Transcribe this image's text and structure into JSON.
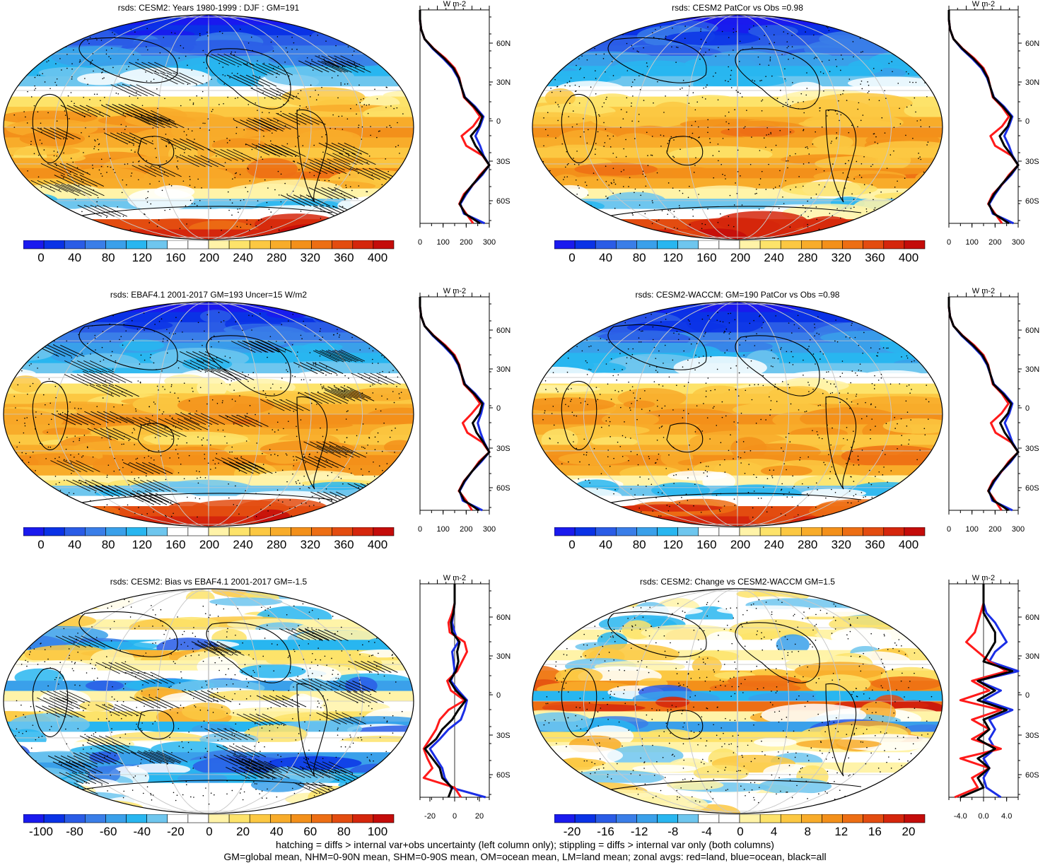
{
  "colors": {
    "full_scale": [
      "#1a1aee",
      "#0a32e6",
      "#2a5ce6",
      "#3a7ee8",
      "#3aa0ea",
      "#28b6f0",
      "#6ec6ee",
      "#ffffff",
      "#ffffff",
      "#fff3a8",
      "#fde36a",
      "#fcc842",
      "#f8ac2a",
      "#f3901a",
      "#ed6e14",
      "#e34c10",
      "#d5260c",
      "#c40c0a"
    ],
    "diff_scale": [
      "#1a1aee",
      "#0a32e6",
      "#2a5ce6",
      "#3a7ee8",
      "#3aa0ea",
      "#28b6f0",
      "#6ec6ee",
      "#ffffff",
      "#ffffff",
      "#fff3a8",
      "#fde36a",
      "#fcc842",
      "#f8ac2a",
      "#f3901a",
      "#ed6e14",
      "#e34c10",
      "#d5260c",
      "#c40c0a"
    ],
    "land_line": "#ff1a1a",
    "ocean_line": "#1a2ee6",
    "all_line": "#000000"
  },
  "panels": [
    {
      "id": "cesm2-climatology",
      "title": "rsds: CESM2: Years 1980-1999 : DJF : GM=191",
      "type": "full",
      "cbar_labels": [
        "0",
        "40",
        "80",
        "120",
        "160",
        "200",
        "240",
        "280",
        "320",
        "360",
        "400"
      ],
      "zonal_unit": "W m-2",
      "zonal_x_labels": [
        "0",
        "100",
        "200",
        "300"
      ],
      "zonal_x_range": [
        0,
        300
      ],
      "lat_labels": [
        "60N",
        "30N",
        "0",
        "30S",
        "60S"
      ],
      "zonal": {
        "land": [
          0,
          0,
          5,
          20,
          60,
          110,
          150,
          170,
          180,
          190,
          230,
          260,
          230,
          180,
          200,
          270,
          300,
          260,
          230,
          190,
          170,
          200,
          230
        ],
        "ocean": [
          0,
          0,
          5,
          20,
          55,
          100,
          140,
          165,
          180,
          195,
          240,
          275,
          260,
          240,
          260,
          275,
          300,
          270,
          230,
          200,
          175,
          190,
          280
        ],
        "all": [
          0,
          0,
          5,
          20,
          58,
          105,
          145,
          168,
          180,
          193,
          235,
          270,
          255,
          220,
          240,
          272,
          300,
          265,
          228,
          195,
          172,
          195,
          260
        ]
      }
    },
    {
      "id": "cesm2-patcor",
      "title": "rsds: CESM2 PatCor vs Obs =0.98",
      "type": "full",
      "cbar_labels": [
        "0",
        "40",
        "80",
        "120",
        "160",
        "200",
        "240",
        "280",
        "320",
        "360",
        "400"
      ],
      "zonal_unit": "W m-2",
      "zonal_x_labels": [
        "0",
        "100",
        "200",
        "300"
      ],
      "zonal_x_range": [
        0,
        300
      ],
      "lat_labels": [
        "60N",
        "30N",
        "0",
        "30S",
        "60S"
      ],
      "zonal": {
        "land": [
          0,
          0,
          5,
          20,
          60,
          110,
          150,
          170,
          180,
          190,
          230,
          260,
          230,
          180,
          200,
          270,
          300,
          260,
          230,
          190,
          170,
          200,
          230
        ],
        "ocean": [
          0,
          0,
          5,
          20,
          55,
          100,
          140,
          165,
          180,
          195,
          240,
          275,
          260,
          240,
          260,
          275,
          300,
          270,
          230,
          200,
          175,
          190,
          280
        ],
        "all": [
          0,
          0,
          5,
          20,
          58,
          105,
          145,
          168,
          180,
          193,
          235,
          270,
          255,
          220,
          240,
          272,
          300,
          265,
          228,
          195,
          172,
          195,
          260
        ]
      }
    },
    {
      "id": "ebaf-observations",
      "title": "rsds: EBAF4.1 2001-2017 GM=193 Uncer=15 W/m2",
      "type": "full",
      "cbar_labels": [
        "0",
        "40",
        "80",
        "120",
        "160",
        "200",
        "240",
        "280",
        "320",
        "360",
        "400"
      ],
      "zonal_unit": "W m-2",
      "zonal_x_labels": [
        "0",
        "100",
        "200",
        "300"
      ],
      "zonal_x_range": [
        0,
        300
      ],
      "lat_labels": [
        "60N",
        "30N",
        "0",
        "30S",
        "60S"
      ],
      "zonal": {
        "land": [
          0,
          0,
          5,
          20,
          60,
          110,
          150,
          170,
          180,
          190,
          230,
          260,
          225,
          185,
          205,
          270,
          300,
          255,
          225,
          190,
          168,
          200,
          225
        ],
        "ocean": [
          0,
          0,
          5,
          20,
          55,
          100,
          140,
          165,
          180,
          195,
          240,
          275,
          265,
          250,
          262,
          278,
          300,
          265,
          225,
          195,
          172,
          185,
          270
        ],
        "all": [
          0,
          0,
          5,
          20,
          58,
          105,
          145,
          168,
          180,
          193,
          235,
          270,
          258,
          228,
          245,
          275,
          300,
          260,
          225,
          192,
          170,
          192,
          255
        ]
      }
    },
    {
      "id": "cesm2-waccm",
      "title": "rsds: CESM2-WACCM: GM=190 PatCor vs Obs =0.98",
      "type": "full",
      "cbar_labels": [
        "0",
        "40",
        "80",
        "120",
        "160",
        "200",
        "240",
        "280",
        "320",
        "360",
        "400"
      ],
      "zonal_unit": "W m-2",
      "zonal_x_labels": [
        "0",
        "100",
        "200",
        "300"
      ],
      "zonal_x_range": [
        0,
        300
      ],
      "lat_labels": [
        "60N",
        "30N",
        "0",
        "30S",
        "60S"
      ],
      "zonal": {
        "land": [
          0,
          0,
          5,
          20,
          60,
          110,
          150,
          170,
          180,
          190,
          230,
          258,
          228,
          182,
          202,
          270,
          300,
          258,
          228,
          190,
          170,
          200,
          228
        ],
        "ocean": [
          0,
          0,
          5,
          20,
          55,
          100,
          140,
          165,
          180,
          195,
          240,
          275,
          262,
          242,
          260,
          275,
          300,
          268,
          228,
          198,
          174,
          188,
          275
        ],
        "all": [
          0,
          0,
          5,
          20,
          58,
          105,
          145,
          168,
          180,
          193,
          235,
          270,
          256,
          222,
          242,
          272,
          300,
          263,
          226,
          194,
          171,
          194,
          258
        ]
      }
    },
    {
      "id": "cesm2-bias",
      "title": "rsds: CESM2: Bias vs EBAF4.1 2001-2017 GM=-1.5",
      "type": "diff",
      "cbar_labels": [
        "-100",
        "-80",
        "-60",
        "-40",
        "-20",
        "0",
        "20",
        "40",
        "60",
        "80",
        "100"
      ],
      "zonal_unit": "W m-2",
      "zonal_x_labels": [
        "-20",
        "0",
        "20"
      ],
      "zonal_x_range": [
        -28,
        28
      ],
      "lat_labels": [
        "60N",
        "30N",
        "0",
        "30S",
        "60S"
      ],
      "zonal": {
        "land": [
          0,
          0,
          0,
          -2,
          -5,
          -4,
          8,
          10,
          6,
          2,
          -6,
          -3,
          8,
          -5,
          -12,
          -15,
          -20,
          -25,
          -22,
          -18,
          -25,
          0,
          5
        ],
        "ocean": [
          0,
          0,
          0,
          -1,
          -2,
          0,
          3,
          -2,
          -1,
          0,
          -3,
          3,
          10,
          8,
          5,
          -5,
          -12,
          -20,
          -15,
          -10,
          -8,
          -3,
          25
        ],
        "all": [
          0,
          0,
          0,
          -1,
          -3,
          -2,
          4,
          2,
          3,
          1,
          -4,
          1,
          9,
          3,
          -2,
          -10,
          -15,
          -24,
          -18,
          -12,
          -10,
          -2,
          -5
        ]
      }
    },
    {
      "id": "cesm2-change",
      "title": "rsds: CESM2: Change vs CESM2-WACCM GM=1.5",
      "type": "diff",
      "cbar_labels": [
        "-20",
        "-16",
        "-12",
        "-8",
        "-4",
        "0",
        "4",
        "8",
        "12",
        "16",
        "20"
      ],
      "zonal_unit": "W m-2",
      "zonal_x_labels": [
        "-4.0",
        "0.0",
        "4.0"
      ],
      "zonal_x_range": [
        -6,
        6
      ],
      "lat_labels": [
        "60N",
        "30N",
        "0",
        "30S",
        "60S"
      ],
      "zonal": {
        "land": [
          0,
          0,
          0,
          -0.5,
          -1,
          -1.5,
          -3,
          -1,
          1,
          4,
          -2,
          1,
          -4,
          3,
          -2,
          1,
          -2,
          3,
          -4,
          1,
          -2,
          -1,
          -5
        ],
        "ocean": [
          0,
          0,
          0,
          0.5,
          2,
          3,
          4,
          2,
          1,
          6,
          -1,
          3,
          0,
          5,
          1,
          2,
          1,
          2,
          0,
          1,
          0,
          0.5,
          3
        ],
        "all": [
          0,
          0,
          0,
          0,
          1,
          2,
          2,
          1,
          0,
          5,
          -1,
          2,
          -1,
          4,
          0,
          1,
          -1,
          2,
          -1,
          1,
          -1,
          0,
          -4
        ]
      }
    }
  ],
  "footnote": {
    "line1": "hatching = diffs > internal var+obs uncertainty (left column only); stippling = diffs > internal var only (both columns)",
    "line2": "GM=global mean, NHM=0-90N mean, SHM=0-90S mean, OM=ocean mean, LM=land mean; zonal avgs: red=land, blue=ocean, black=all"
  }
}
